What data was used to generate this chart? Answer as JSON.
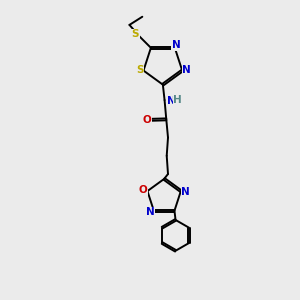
{
  "bg_color": "#ebebeb",
  "bond_color": "#000000",
  "N_color": "#0000cc",
  "O_color": "#cc0000",
  "S_color": "#bbaa00",
  "H_color": "#558888",
  "line_width": 1.4,
  "figsize": [
    3.0,
    3.0
  ],
  "dpi": 100,
  "xlim": [
    0,
    10
  ],
  "ylim": [
    0,
    14
  ]
}
